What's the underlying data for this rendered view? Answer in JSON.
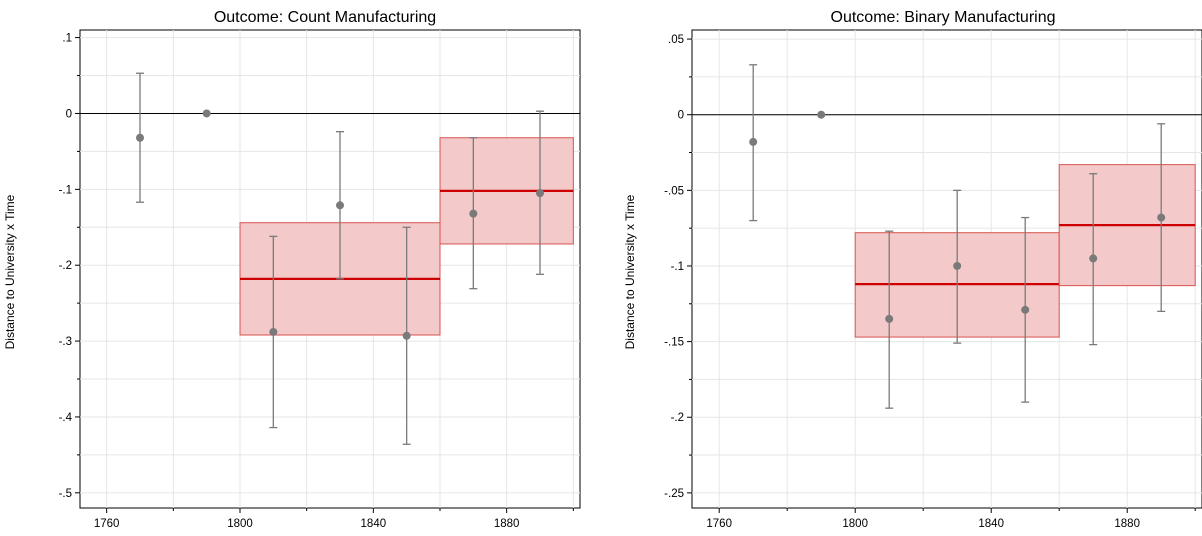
{
  "chart_data": [
    {
      "type": "scatter",
      "title": "Outcome: Count Manufacturing",
      "xlabel": "",
      "ylabel": "Distance to University x Time",
      "xlim": [
        1752,
        1902
      ],
      "ylim": [
        -0.52,
        0.11
      ],
      "x_ticks": [
        1760,
        1800,
        1840,
        1880
      ],
      "x_tick_labels": [
        "1760",
        "1800",
        "1840",
        "1880"
      ],
      "y_ticks": [
        0.1,
        0,
        -0.1,
        -0.2,
        -0.3,
        -0.4,
        -0.5
      ],
      "y_tick_labels": [
        ".1",
        "0",
        "-.1",
        "-.2",
        "-.3",
        "-.4",
        "-.5"
      ],
      "grid": true,
      "reference_line": 0,
      "points": [
        {
          "x": 1770,
          "y": -0.032,
          "low": -0.117,
          "high": 0.053
        },
        {
          "x": 1790,
          "y": 0.0,
          "low": null,
          "high": null
        },
        {
          "x": 1810,
          "y": -0.288,
          "low": -0.414,
          "high": -0.162
        },
        {
          "x": 1830,
          "y": -0.121,
          "low": -0.218,
          "high": -0.024
        },
        {
          "x": 1850,
          "y": -0.293,
          "low": -0.436,
          "high": -0.15
        },
        {
          "x": 1870,
          "y": -0.132,
          "low": -0.231,
          "high": -0.032
        },
        {
          "x": 1890,
          "y": -0.105,
          "low": -0.212,
          "high": 0.003
        }
      ],
      "bands": [
        {
          "x0": 1800,
          "x1": 1860,
          "estimate": -0.218,
          "low": -0.292,
          "high": -0.144
        },
        {
          "x0": 1860,
          "x1": 1900,
          "estimate": -0.102,
          "low": -0.172,
          "high": -0.032
        }
      ],
      "colors": {
        "points": "#7a7a7a",
        "band_fill": "#f2c6c6",
        "band_edge": "#d9534f",
        "band_line": "#cc0000"
      }
    },
    {
      "type": "scatter",
      "title": "Outcome: Binary Manufacturing",
      "xlabel": "",
      "ylabel": "Distance to University x Time",
      "xlim": [
        1752,
        1902
      ],
      "ylim": [
        -0.26,
        0.056
      ],
      "x_ticks": [
        1760,
        1800,
        1840,
        1880
      ],
      "x_tick_labels": [
        "1760",
        "1800",
        "1840",
        "1880"
      ],
      "y_ticks": [
        0.05,
        0,
        -0.05,
        -0.1,
        -0.15,
        -0.2,
        -0.25
      ],
      "y_tick_labels": [
        ".05",
        "0",
        "-.05",
        "-.1",
        "-.15",
        "-.2",
        "-.25"
      ],
      "grid": true,
      "reference_line": 0,
      "points": [
        {
          "x": 1770,
          "y": -0.018,
          "low": -0.07,
          "high": 0.033
        },
        {
          "x": 1790,
          "y": 0.0,
          "low": null,
          "high": null
        },
        {
          "x": 1810,
          "y": -0.135,
          "low": -0.194,
          "high": -0.077
        },
        {
          "x": 1830,
          "y": -0.1,
          "low": -0.151,
          "high": -0.05
        },
        {
          "x": 1850,
          "y": -0.129,
          "low": -0.19,
          "high": -0.068
        },
        {
          "x": 1870,
          "y": -0.095,
          "low": -0.152,
          "high": -0.039
        },
        {
          "x": 1890,
          "y": -0.068,
          "low": -0.13,
          "high": -0.006
        }
      ],
      "bands": [
        {
          "x0": 1800,
          "x1": 1860,
          "estimate": -0.112,
          "low": -0.147,
          "high": -0.078
        },
        {
          "x0": 1860,
          "x1": 1900,
          "estimate": -0.073,
          "low": -0.113,
          "high": -0.033
        }
      ],
      "colors": {
        "points": "#7a7a7a",
        "band_fill": "#f2c6c6",
        "band_edge": "#d9534f",
        "band_line": "#cc0000"
      }
    }
  ]
}
